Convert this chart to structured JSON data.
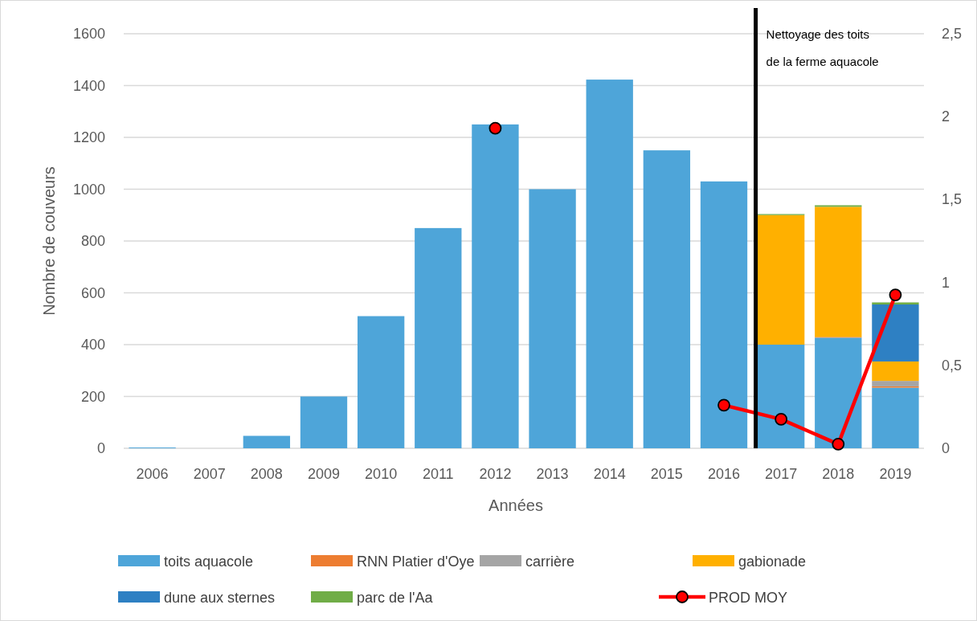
{
  "chart_data": {
    "type": "bar",
    "stacked": true,
    "xlabel": "Années",
    "ylabel": "Nombre de couveurs",
    "categories": [
      "2006",
      "2007",
      "2008",
      "2009",
      "2010",
      "2011",
      "2012",
      "2013",
      "2014",
      "2015",
      "2016",
      "2017",
      "2018",
      "2019"
    ],
    "series": [
      {
        "name": "toits aquacole",
        "color": "#4ea5d9",
        "values": [
          3,
          0,
          48,
          200,
          510,
          850,
          1250,
          1000,
          1423,
          1150,
          1030,
          400,
          427,
          234
        ]
      },
      {
        "name": "RNN Platier d'Oye",
        "color": "#ed7d31",
        "values": [
          0,
          0,
          0,
          0,
          0,
          0,
          0,
          0,
          0,
          0,
          0,
          0,
          3,
          5
        ]
      },
      {
        "name": "carrière",
        "color": "#a5a5a5",
        "values": [
          0,
          0,
          0,
          0,
          0,
          0,
          0,
          0,
          0,
          0,
          0,
          0,
          0,
          21
        ]
      },
      {
        "name": "gabionade",
        "color": "#ffb000",
        "values": [
          0,
          0,
          0,
          0,
          0,
          0,
          0,
          0,
          0,
          0,
          0,
          500,
          502,
          75
        ]
      },
      {
        "name": "dune aux sternes",
        "color": "#2e80c3",
        "values": [
          0,
          0,
          0,
          0,
          0,
          0,
          0,
          0,
          0,
          0,
          0,
          0,
          0,
          220
        ]
      },
      {
        "name": "parc de l'Aa",
        "color": "#70ad47",
        "values": [
          0,
          0,
          0,
          0,
          0,
          0,
          0,
          0,
          0,
          0,
          0,
          4,
          6,
          8
        ]
      },
      {
        "name": "PROD MOY",
        "type": "line",
        "axis": "y2",
        "color": "#ff0000",
        "marker": "circle",
        "values": [
          null,
          null,
          null,
          null,
          null,
          null,
          1.93,
          null,
          null,
          null,
          0.26,
          0.175,
          0.025,
          0.925
        ]
      }
    ],
    "ylim": [
      0,
      1600
    ],
    "yticks": [
      0,
      200,
      400,
      600,
      800,
      1000,
      1200,
      1400,
      1600
    ],
    "y2lim": [
      0,
      2.5
    ],
    "y2ticks": [
      {
        "value": 0,
        "label": "0"
      },
      {
        "value": 0.5,
        "label": "0,5"
      },
      {
        "value": 1,
        "label": "1"
      },
      {
        "value": 1.5,
        "label": "1,5"
      },
      {
        "value": 2,
        "label": "2"
      },
      {
        "value": 2.5,
        "label": "2,5"
      }
    ],
    "ref_lines": [
      {
        "axis": "x",
        "value": "2017",
        "label": "Nettoyage des toits de la ferme aquacole",
        "color": "#000000"
      }
    ],
    "grid": "y",
    "legend": "bottom"
  }
}
